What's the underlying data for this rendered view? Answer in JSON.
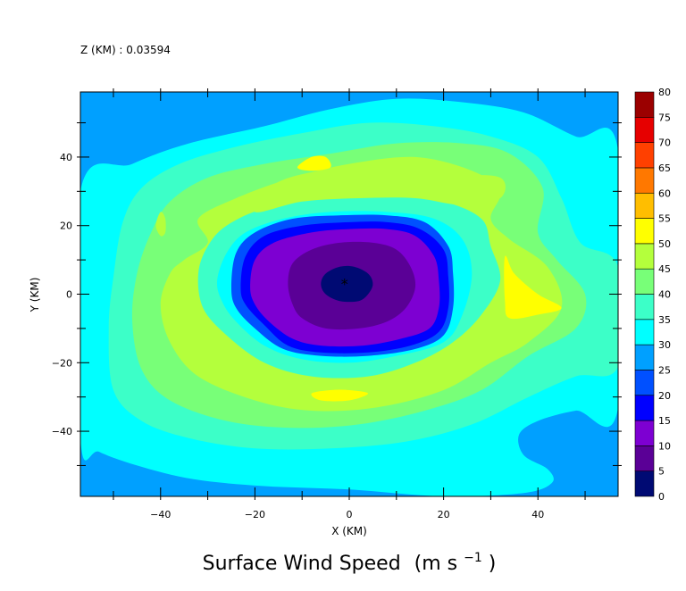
{
  "chart_data": {
    "type": "heatmap",
    "title": "Surface Wind Speed",
    "title_units": "(m s",
    "title_units_exp": "−1",
    "title_units_close": ")",
    "subtitle": "Z (KM) : 0.03594",
    "xlabel": "X (KM)",
    "ylabel": "Y (KM)",
    "xlim": [
      -57,
      57
    ],
    "ylim": [
      -59,
      59
    ],
    "x_ticks": [
      -40,
      -20,
      0,
      20,
      40
    ],
    "y_ticks": [
      -40,
      -20,
      0,
      20,
      40
    ],
    "grid": false,
    "legend": "colorbar-right",
    "colorbar": {
      "levels": [
        "0",
        "5",
        "10",
        "15",
        "20",
        "25",
        "30",
        "35",
        "40",
        "45",
        "50",
        "55",
        "60",
        "65",
        "70",
        "75",
        "80"
      ],
      "colors": [
        "#000a73",
        "#5a0096",
        "#7d00d2",
        "#0000ff",
        "#0050ff",
        "#00a0ff",
        "#00ffff",
        "#3cffc8",
        "#78ff78",
        "#b4ff3c",
        "#ffff00",
        "#ffbe00",
        "#ff7800",
        "#ff4000",
        "#e60000",
        "#9b0000"
      ]
    },
    "center_marker": {
      "x": -1,
      "y": 3,
      "symbol": "*",
      "color": "#ff2020"
    },
    "contours": [
      {
        "level": 30,
        "color": "#00ffff",
        "points": [
          [
            -57,
            30
          ],
          [
            -46,
            38
          ],
          [
            -34,
            44
          ],
          [
            -18,
            49
          ],
          [
            -4,
            54
          ],
          [
            10,
            57
          ],
          [
            24,
            56
          ],
          [
            37,
            53
          ],
          [
            48,
            46
          ],
          [
            57,
            42
          ],
          [
            57,
            -33
          ],
          [
            48,
            -34
          ],
          [
            40,
            -37
          ],
          [
            36,
            -41
          ],
          [
            37,
            -47
          ],
          [
            42,
            -51
          ],
          [
            43,
            -55
          ],
          [
            37,
            -58
          ],
          [
            20,
            -59
          ],
          [
            0,
            -57
          ],
          [
            -18,
            -56
          ],
          [
            -33,
            -54
          ],
          [
            -45,
            -50
          ],
          [
            -53,
            -46
          ],
          [
            -57,
            -42
          ]
        ]
      },
      {
        "level": 35,
        "color": "#3cffc8",
        "points": [
          [
            -48,
            21
          ],
          [
            -44,
            31
          ],
          [
            -36,
            38
          ],
          [
            -24,
            43
          ],
          [
            -10,
            47
          ],
          [
            4,
            50
          ],
          [
            18,
            49
          ],
          [
            30,
            46
          ],
          [
            40,
            40
          ],
          [
            45,
            28
          ],
          [
            49,
            15
          ],
          [
            57,
            8
          ],
          [
            57,
            -21
          ],
          [
            48,
            -24
          ],
          [
            38,
            -30
          ],
          [
            26,
            -38
          ],
          [
            12,
            -43
          ],
          [
            -4,
            -45
          ],
          [
            -20,
            -45
          ],
          [
            -34,
            -42
          ],
          [
            -44,
            -37
          ],
          [
            -50,
            -28
          ],
          [
            -51,
            -10
          ],
          [
            -50,
            5
          ]
        ]
      },
      {
        "level": 40,
        "color": "#78ff78",
        "points": [
          [
            -42,
            18
          ],
          [
            -38,
            27
          ],
          [
            -30,
            34
          ],
          [
            -18,
            38
          ],
          [
            -4,
            41
          ],
          [
            10,
            44
          ],
          [
            24,
            44
          ],
          [
            34,
            41
          ],
          [
            41,
            31
          ],
          [
            40,
            18
          ],
          [
            44,
            10
          ],
          [
            50,
            0
          ],
          [
            48,
            -10
          ],
          [
            38,
            -18
          ],
          [
            28,
            -28
          ],
          [
            16,
            -34
          ],
          [
            2,
            -38
          ],
          [
            -12,
            -39
          ],
          [
            -26,
            -37
          ],
          [
            -38,
            -31
          ],
          [
            -44,
            -22
          ],
          [
            -46,
            -8
          ],
          [
            -45,
            6
          ]
        ]
      },
      {
        "level": 45,
        "color": "#b4ff3c",
        "points": [
          [
            -40,
            -3
          ],
          [
            -38,
            6
          ],
          [
            -35,
            10
          ],
          [
            -30,
            15
          ],
          [
            -32,
            22
          ],
          [
            -24,
            28
          ],
          [
            -12,
            34
          ],
          [
            0,
            38
          ],
          [
            14,
            40
          ],
          [
            26,
            36
          ],
          [
            32,
            30
          ],
          [
            30,
            22
          ],
          [
            34,
            16
          ],
          [
            42,
            8
          ],
          [
            45,
            -4
          ],
          [
            38,
            -14
          ],
          [
            30,
            -20
          ],
          [
            20,
            -28
          ],
          [
            6,
            -33
          ],
          [
            -8,
            -34
          ],
          [
            -20,
            -31
          ],
          [
            -32,
            -24
          ],
          [
            -38,
            -14
          ]
        ]
      },
      {
        "level": 35,
        "color": "#3cffc8",
        "points": [
          [
            -32,
            6
          ],
          [
            -30,
            14
          ],
          [
            -26,
            20
          ],
          [
            -18,
            25
          ],
          [
            -6,
            28
          ],
          [
            8,
            29
          ],
          [
            20,
            27
          ],
          [
            28,
            22
          ],
          [
            30,
            14
          ],
          [
            32,
            4
          ],
          [
            28,
            -6
          ],
          [
            22,
            -14
          ],
          [
            14,
            -20
          ],
          [
            4,
            -24
          ],
          [
            -8,
            -24
          ],
          [
            -18,
            -20
          ],
          [
            -26,
            -12
          ],
          [
            -31,
            -4
          ]
        ]
      },
      {
        "level": 30,
        "color": "#00ffff",
        "points": [
          [
            -28,
            4
          ],
          [
            -26,
            12
          ],
          [
            -22,
            18
          ],
          [
            -14,
            22
          ],
          [
            -4,
            24
          ],
          [
            8,
            24
          ],
          [
            18,
            22
          ],
          [
            24,
            16
          ],
          [
            26,
            6
          ],
          [
            24,
            -6
          ],
          [
            20,
            -14
          ],
          [
            10,
            -18
          ],
          [
            0,
            -20
          ],
          [
            -10,
            -19
          ],
          [
            -18,
            -15
          ],
          [
            -24,
            -8
          ],
          [
            -27,
            -2
          ]
        ]
      },
      {
        "level": 20,
        "color": "#0050ff",
        "points": [
          [
            -25,
            2
          ],
          [
            -24,
            12
          ],
          [
            -20,
            18
          ],
          [
            -12,
            22
          ],
          [
            -2,
            23
          ],
          [
            8,
            23
          ],
          [
            16,
            21
          ],
          [
            21,
            14
          ],
          [
            22,
            6
          ],
          [
            22,
            -4
          ],
          [
            20,
            -12
          ],
          [
            14,
            -16
          ],
          [
            4,
            -18
          ],
          [
            -6,
            -18
          ],
          [
            -14,
            -16
          ],
          [
            -20,
            -10
          ],
          [
            -24,
            -4
          ]
        ]
      },
      {
        "level": 15,
        "color": "#0000ff",
        "points": [
          [
            -23,
            2
          ],
          [
            -22,
            11
          ],
          [
            -18,
            17
          ],
          [
            -10,
            20
          ],
          [
            0,
            21
          ],
          [
            8,
            21
          ],
          [
            15,
            19
          ],
          [
            20,
            13
          ],
          [
            21,
            5
          ],
          [
            21,
            -4
          ],
          [
            19,
            -11
          ],
          [
            13,
            -15
          ],
          [
            4,
            -17
          ],
          [
            -6,
            -17
          ],
          [
            -13,
            -15
          ],
          [
            -18,
            -9
          ],
          [
            -22,
            -3
          ]
        ]
      },
      {
        "level": 10,
        "color": "#7d00d2",
        "points": [
          [
            -21,
            2
          ],
          [
            -20,
            10
          ],
          [
            -16,
            15
          ],
          [
            -8,
            18
          ],
          [
            0,
            19
          ],
          [
            8,
            19
          ],
          [
            14,
            17
          ],
          [
            18,
            11
          ],
          [
            19,
            4
          ],
          [
            19,
            -4
          ],
          [
            17,
            -10
          ],
          [
            11,
            -13
          ],
          [
            3,
            -15
          ],
          [
            -6,
            -15
          ],
          [
            -12,
            -13
          ],
          [
            -17,
            -8
          ],
          [
            -20,
            -3
          ]
        ]
      },
      {
        "level": 5,
        "color": "#5a0096",
        "points": [
          [
            -13,
            3
          ],
          [
            -12,
            9
          ],
          [
            -8,
            13
          ],
          [
            -2,
            15
          ],
          [
            5,
            15
          ],
          [
            10,
            13
          ],
          [
            13,
            8
          ],
          [
            14,
            2
          ],
          [
            12,
            -4
          ],
          [
            8,
            -8
          ],
          [
            2,
            -10
          ],
          [
            -5,
            -10
          ],
          [
            -10,
            -7
          ],
          [
            -12,
            -3
          ]
        ]
      },
      {
        "level": 0,
        "color": "#000a73",
        "points": [
          [
            -6,
            3
          ],
          [
            -5,
            6
          ],
          [
            -2,
            8
          ],
          [
            1,
            8
          ],
          [
            4,
            6
          ],
          [
            5,
            3
          ],
          [
            4,
            0
          ],
          [
            2,
            -2
          ],
          [
            -2,
            -2
          ],
          [
            -5,
            0
          ]
        ]
      },
      {
        "level": 45,
        "color": "#b4ff3c",
        "points": [
          [
            -20,
            24
          ],
          [
            -16,
            32
          ],
          [
            -6,
            36
          ],
          [
            8,
            37
          ],
          [
            22,
            35
          ],
          [
            32,
            34
          ],
          [
            32,
            28
          ],
          [
            24,
            26
          ],
          [
            14,
            28
          ],
          [
            2,
            28
          ],
          [
            -10,
            27
          ]
        ]
      },
      {
        "level": 50,
        "color": "#ffff00",
        "points": [
          [
            -11,
            37
          ],
          [
            -8,
            40
          ],
          [
            -5,
            40
          ],
          [
            -4,
            37
          ],
          [
            -8,
            36
          ]
        ]
      },
      {
        "level": 50,
        "color": "#ffff00",
        "points": [
          [
            33,
            11
          ],
          [
            35,
            6
          ],
          [
            40,
            0
          ],
          [
            45,
            -4
          ],
          [
            40,
            -6
          ],
          [
            34,
            -7
          ],
          [
            33,
            -2
          ]
        ]
      },
      {
        "level": 50,
        "color": "#ffff00",
        "points": [
          [
            -8,
            -29
          ],
          [
            -6,
            -31
          ],
          [
            0,
            -31
          ],
          [
            4,
            -29
          ],
          [
            0,
            -28
          ],
          [
            -4,
            -28
          ]
        ]
      },
      {
        "level": 45,
        "color": "#b4ff3c",
        "points": [
          [
            -40,
            24
          ],
          [
            -39,
            22
          ],
          [
            -39,
            18
          ],
          [
            -40,
            17
          ],
          [
            -41,
            20
          ]
        ]
      }
    ]
  }
}
